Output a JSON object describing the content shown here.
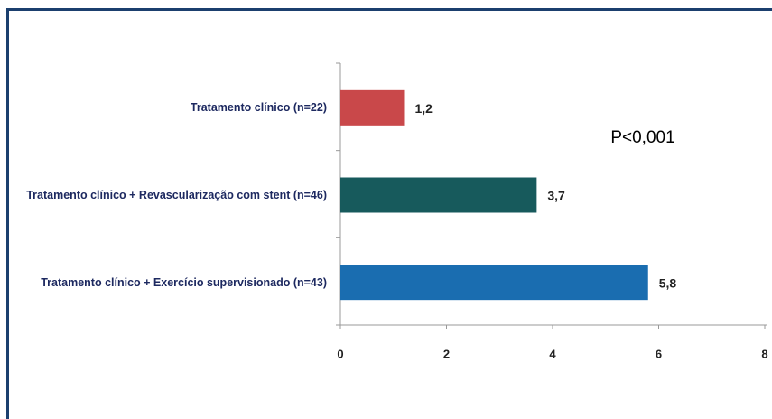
{
  "chart_data": {
    "type": "bar",
    "orientation": "horizontal",
    "categories": [
      "Tratamento clínico (n=22)",
      "Tratamento clínico + Revascularização com stent (n=46)",
      "Tratamento clínico + Exercício supervisionado (n=43)"
    ],
    "values": [
      1.2,
      3.7,
      5.8
    ],
    "value_labels": [
      "1,2",
      "3,7",
      "5,8"
    ],
    "colors": [
      "#c9484a",
      "#175a5c",
      "#1a6db0"
    ],
    "xlim": [
      0,
      8
    ],
    "xticks": [
      0,
      2,
      4,
      6,
      8
    ],
    "annotation": "P<0,001"
  }
}
